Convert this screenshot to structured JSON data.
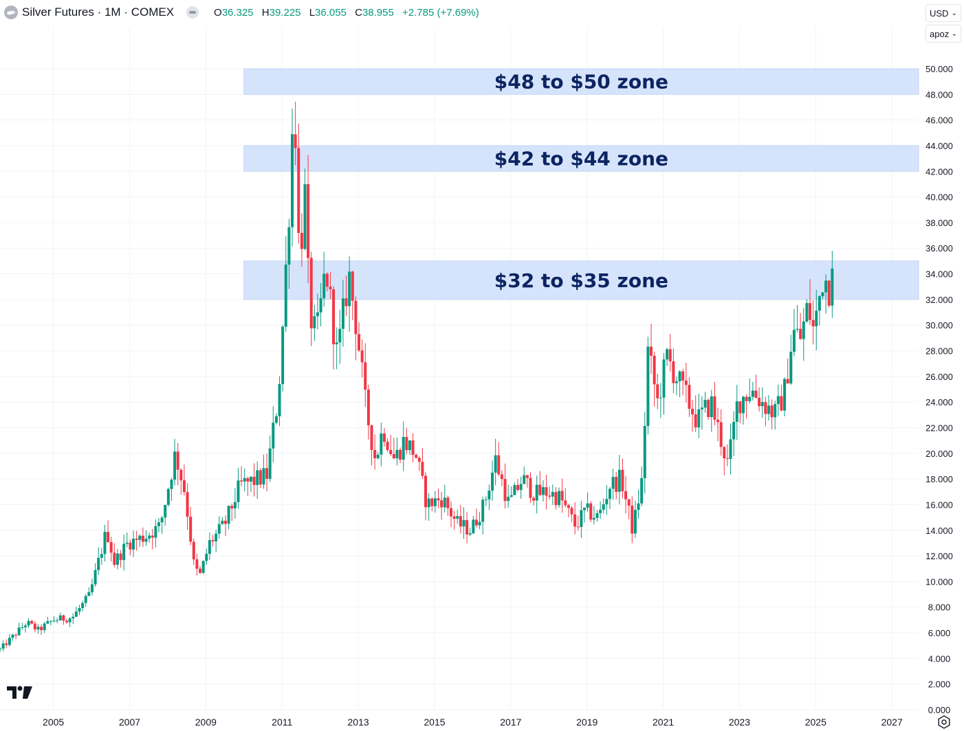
{
  "header": {
    "title": "Silver Futures · 1M · COMEX",
    "ohlc": [
      {
        "key": "O",
        "value": "36.325"
      },
      {
        "key": "H",
        "value": "39.225"
      },
      {
        "key": "L",
        "value": "36.055"
      },
      {
        "key": "C",
        "value": "38.955"
      }
    ],
    "change": "+2.785 (+7.69%)"
  },
  "controls": {
    "currency": "USD",
    "unit": "apoz"
  },
  "colors": {
    "up": "#089981",
    "down": "#f23645",
    "zone_fill": "#d6e4fb",
    "zone_text": "#0c2461",
    "grid": "#f0f3fa"
  },
  "icons": [
    "symbol-icon",
    "status-icon",
    "chevron-down-icon",
    "tradingview-logo",
    "settings-icon"
  ],
  "chart_data": {
    "type": "candlestick",
    "title": "Silver Futures · 1M · COMEX",
    "x_tick_labels": [
      "2005",
      "2007",
      "2009",
      "2011",
      "2013",
      "2015",
      "2017",
      "2019",
      "2021",
      "2023",
      "2025",
      "2027"
    ],
    "y_tick_labels": [
      "0.000",
      "2.000",
      "4.000",
      "6.000",
      "8.000",
      "10.000",
      "12.000",
      "14.000",
      "16.000",
      "18.000",
      "20.000",
      "22.000",
      "24.000",
      "26.000",
      "28.000",
      "30.000",
      "32.000",
      "34.000",
      "36.000",
      "38.000",
      "40.000",
      "42.000",
      "44.000",
      "46.000",
      "48.000",
      "50.000"
    ],
    "xlim": [
      2003.6,
      2027.7
    ],
    "ylim": [
      0,
      50
    ],
    "grid": true,
    "zones": [
      {
        "label": "$48 to $50 zone",
        "low": 48,
        "high": 50,
        "x_start": 2010.0
      },
      {
        "label": "$42 to $44 zone",
        "low": 42,
        "high": 44,
        "x_start": 2010.0
      },
      {
        "label": "$32 to $35 zone",
        "low": 32,
        "high": 35,
        "x_start": 2010.0
      }
    ],
    "close_anchors": [
      [
        2003.6,
        4.7
      ],
      [
        2004.3,
        6.8
      ],
      [
        2004.6,
        6.2
      ],
      [
        2005.0,
        7.0
      ],
      [
        2005.5,
        7.2
      ],
      [
        2005.95,
        8.9
      ],
      [
        2006.4,
        14.0
      ],
      [
        2006.6,
        11.5
      ],
      [
        2006.95,
        13.0
      ],
      [
        2007.4,
        13.5
      ],
      [
        2007.8,
        14.3
      ],
      [
        2008.2,
        20.0
      ],
      [
        2008.45,
        17.0
      ],
      [
        2008.7,
        11.0
      ],
      [
        2008.85,
        10.5
      ],
      [
        2009.1,
        13.0
      ],
      [
        2009.5,
        14.5
      ],
      [
        2009.9,
        17.5
      ],
      [
        2010.4,
        18.0
      ],
      [
        2010.6,
        18.3
      ],
      [
        2010.9,
        24.5
      ],
      [
        2011.0,
        29.0
      ],
      [
        2011.15,
        37.0
      ],
      [
        2011.32,
        48.5
      ],
      [
        2011.45,
        35.0
      ],
      [
        2011.6,
        40.0
      ],
      [
        2011.72,
        31.0
      ],
      [
        2011.9,
        29.0
      ],
      [
        2012.15,
        34.5
      ],
      [
        2012.45,
        27.5
      ],
      [
        2012.75,
        34.0
      ],
      [
        2012.95,
        30.0
      ],
      [
        2013.2,
        23.5
      ],
      [
        2013.45,
        19.5
      ],
      [
        2013.65,
        22.0
      ],
      [
        2013.95,
        19.5
      ],
      [
        2014.2,
        21.0
      ],
      [
        2014.5,
        20.0
      ],
      [
        2014.8,
        16.0
      ],
      [
        2015.2,
        16.5
      ],
      [
        2015.6,
        14.5
      ],
      [
        2015.95,
        14.0
      ],
      [
        2016.3,
        16.0
      ],
      [
        2016.6,
        19.5
      ],
      [
        2016.95,
        16.0
      ],
      [
        2017.3,
        18.0
      ],
      [
        2017.65,
        16.8
      ],
      [
        2017.95,
        17.0
      ],
      [
        2018.3,
        16.5
      ],
      [
        2018.7,
        14.3
      ],
      [
        2018.95,
        15.5
      ],
      [
        2019.3,
        15.0
      ],
      [
        2019.6,
        17.5
      ],
      [
        2019.9,
        18.0
      ],
      [
        2020.2,
        14.0
      ],
      [
        2020.45,
        18.0
      ],
      [
        2020.6,
        28.0
      ],
      [
        2020.85,
        24.0
      ],
      [
        2021.1,
        27.5
      ],
      [
        2021.5,
        25.0
      ],
      [
        2021.9,
        22.5
      ],
      [
        2022.25,
        24.0
      ],
      [
        2022.7,
        19.0
      ],
      [
        2022.95,
        24.0
      ],
      [
        2023.3,
        25.0
      ],
      [
        2023.6,
        24.0
      ],
      [
        2023.95,
        23.0
      ],
      [
        2024.2,
        25.0
      ],
      [
        2024.4,
        29.5
      ],
      [
        2024.6,
        29.0
      ],
      [
        2024.8,
        31.5
      ],
      [
        2024.95,
        29.5
      ],
      [
        2025.2,
        34.0
      ],
      [
        2025.35,
        33.0
      ],
      [
        2025.45,
        36.3
      ],
      [
        2025.5,
        38.955
      ]
    ]
  }
}
